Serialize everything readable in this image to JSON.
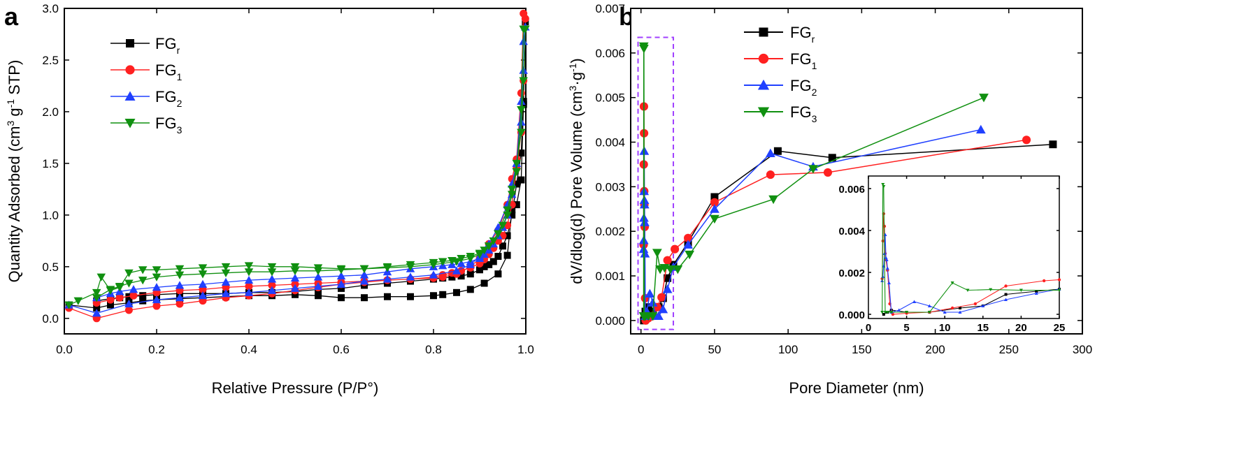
{
  "figure": {
    "panel_a_label": "a",
    "panel_b_label": "b"
  },
  "colors": {
    "FGr": "#000000",
    "FG1": "#ff2020",
    "FG2": "#2040ff",
    "FG3": "#109010",
    "box": "#a040ff"
  },
  "chart_data": [
    {
      "id": "a",
      "type": "line",
      "title": "",
      "xlabel": "Relative Pressure  (P/P°)",
      "ylabel_parts": [
        "Quantity Adsorbed (cm",
        "3",
        " g",
        "-1",
        " STP)"
      ],
      "xlim": [
        0,
        1.0
      ],
      "ylim": [
        -0.15,
        3.0
      ],
      "xticks": [
        "0.0",
        "0.2",
        "0.4",
        "0.6",
        "0.8",
        "1.0"
      ],
      "yticks": [
        "0.0",
        "0.5",
        "1.0",
        "1.5",
        "2.0",
        "2.5",
        "3.0"
      ],
      "legend_position": "upper-left",
      "series": [
        {
          "name": "FGr",
          "legend_base": "FG",
          "legend_sub": "r",
          "color": "#000000",
          "marker": "square",
          "x": [
            0.01,
            0.07,
            0.1,
            0.14,
            0.17,
            0.2,
            0.25,
            0.3,
            0.35,
            0.4,
            0.45,
            0.5,
            0.55,
            0.6,
            0.65,
            0.7,
            0.75,
            0.8,
            0.82,
            0.85,
            0.88,
            0.91,
            0.94,
            0.96,
            0.97,
            0.98,
            0.99,
            0.995,
            0.999,
            0.995,
            0.99,
            0.98,
            0.97,
            0.96,
            0.95,
            0.94,
            0.93,
            0.92,
            0.91,
            0.9,
            0.88,
            0.86,
            0.84,
            0.82,
            0.8,
            0.75,
            0.7,
            0.65,
            0.6,
            0.55,
            0.5,
            0.45,
            0.4,
            0.35,
            0.3,
            0.25,
            0.2,
            0.17,
            0.14,
            0.12,
            0.1,
            0.07
          ],
          "y": [
            0.13,
            0.1,
            0.13,
            0.15,
            0.17,
            0.18,
            0.19,
            0.2,
            0.21,
            0.22,
            0.22,
            0.23,
            0.22,
            0.2,
            0.2,
            0.21,
            0.21,
            0.22,
            0.23,
            0.25,
            0.28,
            0.34,
            0.43,
            0.61,
            1.05,
            1.1,
            1.34,
            2.07,
            2.87,
            2.1,
            1.6,
            1.3,
            1.0,
            0.8,
            0.7,
            0.6,
            0.55,
            0.52,
            0.5,
            0.47,
            0.43,
            0.41,
            0.4,
            0.39,
            0.38,
            0.36,
            0.34,
            0.32,
            0.29,
            0.28,
            0.26,
            0.25,
            0.25,
            0.24,
            0.24,
            0.24,
            0.23,
            0.22,
            0.21,
            0.2,
            0.19,
            0.17
          ]
        },
        {
          "name": "FG1",
          "legend_base": "FG",
          "legend_sub": "1",
          "color": "#ff2020",
          "marker": "circle",
          "x": [
            0.01,
            0.07,
            0.14,
            0.2,
            0.25,
            0.3,
            0.35,
            0.4,
            0.45,
            0.5,
            0.55,
            0.6,
            0.65,
            0.7,
            0.75,
            0.8,
            0.82,
            0.85,
            0.88,
            0.9,
            0.92,
            0.94,
            0.96,
            0.97,
            0.98,
            0.99,
            0.995,
            0.999,
            0.995,
            0.99,
            0.98,
            0.97,
            0.96,
            0.95,
            0.94,
            0.93,
            0.92,
            0.91,
            0.9,
            0.88,
            0.86,
            0.84,
            0.82,
            0.8,
            0.75,
            0.7,
            0.65,
            0.6,
            0.55,
            0.5,
            0.45,
            0.4,
            0.35,
            0.3,
            0.25,
            0.2,
            0.15,
            0.12,
            0.1,
            0.07
          ],
          "y": [
            0.1,
            0.0,
            0.08,
            0.12,
            0.14,
            0.17,
            0.2,
            0.22,
            0.24,
            0.27,
            0.3,
            0.33,
            0.35,
            0.37,
            0.38,
            0.39,
            0.4,
            0.43,
            0.5,
            0.58,
            0.72,
            0.85,
            1.1,
            1.35,
            1.54,
            2.18,
            2.95,
            2.9,
            2.3,
            1.8,
            1.45,
            1.1,
            0.9,
            0.8,
            0.75,
            0.68,
            0.62,
            0.57,
            0.53,
            0.49,
            0.46,
            0.44,
            0.42,
            0.4,
            0.38,
            0.37,
            0.36,
            0.35,
            0.34,
            0.33,
            0.32,
            0.31,
            0.3,
            0.28,
            0.27,
            0.25,
            0.22,
            0.2,
            0.18,
            0.15
          ]
        },
        {
          "name": "FG2",
          "legend_base": "FG",
          "legend_sub": "2",
          "color": "#2040ff",
          "marker": "triangle-up",
          "x": [
            0.01,
            0.07,
            0.14,
            0.2,
            0.25,
            0.3,
            0.35,
            0.4,
            0.45,
            0.5,
            0.55,
            0.6,
            0.65,
            0.7,
            0.75,
            0.8,
            0.85,
            0.88,
            0.9,
            0.92,
            0.94,
            0.96,
            0.97,
            0.98,
            0.99,
            0.995,
            0.999,
            0.995,
            0.99,
            0.98,
            0.97,
            0.96,
            0.95,
            0.94,
            0.93,
            0.92,
            0.91,
            0.9,
            0.88,
            0.86,
            0.84,
            0.82,
            0.8,
            0.75,
            0.7,
            0.65,
            0.6,
            0.55,
            0.5,
            0.45,
            0.4,
            0.35,
            0.3,
            0.25,
            0.2,
            0.15,
            0.12,
            0.1,
            0.07
          ],
          "y": [
            0.13,
            0.05,
            0.14,
            0.18,
            0.2,
            0.22,
            0.24,
            0.25,
            0.27,
            0.29,
            0.31,
            0.33,
            0.36,
            0.38,
            0.4,
            0.42,
            0.46,
            0.52,
            0.6,
            0.72,
            0.88,
            1.1,
            1.3,
            1.5,
            2.1,
            2.68,
            2.82,
            2.4,
            1.9,
            1.5,
            1.2,
            1.0,
            0.88,
            0.8,
            0.72,
            0.66,
            0.62,
            0.58,
            0.55,
            0.53,
            0.52,
            0.51,
            0.5,
            0.48,
            0.45,
            0.42,
            0.41,
            0.4,
            0.39,
            0.38,
            0.37,
            0.35,
            0.33,
            0.32,
            0.3,
            0.28,
            0.26,
            0.24,
            0.2
          ]
        },
        {
          "name": "FG3",
          "legend_base": "FG",
          "legend_sub": "3",
          "color": "#109010",
          "marker": "triangle-down",
          "x": [
            0.01,
            0.03,
            0.07,
            0.08,
            0.1,
            0.12,
            0.14,
            0.17,
            0.2,
            0.25,
            0.3,
            0.35,
            0.4,
            0.45,
            0.5,
            0.55,
            0.6,
            0.65,
            0.7,
            0.75,
            0.8,
            0.85,
            0.88,
            0.9,
            0.92,
            0.94,
            0.96,
            0.97,
            0.98,
            0.99,
            0.995,
            0.999,
            0.995,
            0.99,
            0.98,
            0.97,
            0.96,
            0.95,
            0.94,
            0.93,
            0.92,
            0.91,
            0.9,
            0.88,
            0.86,
            0.84,
            0.82,
            0.8,
            0.75,
            0.7,
            0.65,
            0.6,
            0.55,
            0.5,
            0.45,
            0.4,
            0.35,
            0.3,
            0.25,
            0.2,
            0.17,
            0.14,
            0.12,
            0.1,
            0.07
          ],
          "y": [
            0.13,
            0.17,
            0.25,
            0.4,
            0.27,
            0.3,
            0.44,
            0.47,
            0.47,
            0.48,
            0.49,
            0.5,
            0.51,
            0.5,
            0.5,
            0.49,
            0.48,
            0.48,
            0.49,
            0.5,
            0.52,
            0.55,
            0.58,
            0.62,
            0.7,
            0.82,
            1.05,
            1.25,
            1.42,
            2.02,
            2.8,
            2.8,
            2.3,
            1.8,
            1.5,
            1.2,
            1.0,
            0.9,
            0.82,
            0.75,
            0.7,
            0.66,
            0.63,
            0.6,
            0.58,
            0.56,
            0.55,
            0.54,
            0.52,
            0.5,
            0.48,
            0.47,
            0.46,
            0.46,
            0.45,
            0.45,
            0.44,
            0.43,
            0.42,
            0.4,
            0.37,
            0.34,
            0.31,
            0.28,
            0.2
          ]
        }
      ]
    },
    {
      "id": "b",
      "type": "line",
      "title": "",
      "xlabel": "Pore Diameter (nm)",
      "ylabel_parts": [
        "dV/dlog(d) Pore Volume (cm",
        "3",
        "·g",
        "-1",
        ")"
      ],
      "xlim": [
        -7,
        300
      ],
      "ylim": [
        -0.0003,
        0.007
      ],
      "xticks": [
        "0",
        "50",
        "100",
        "150",
        "200",
        "250",
        "300"
      ],
      "yticks": [
        "0.000",
        "0.001",
        "0.002",
        "0.003",
        "0.004",
        "0.005",
        "0.006",
        "0.007"
      ],
      "legend_position": "upper-center",
      "highlight_box": {
        "x": [
          -2,
          22
        ],
        "y": [
          -0.0002,
          0.00635
        ]
      },
      "series": [
        {
          "name": "FGr",
          "legend_base": "FG",
          "legend_sub": "r",
          "color": "#000000",
          "marker": "square",
          "x": [
            2,
            2.5,
            3,
            5,
            8,
            12,
            15,
            18,
            22,
            32,
            50,
            93,
            130,
            280
          ],
          "y": [
            0.0,
            0.0001,
            0.0002,
            0.0003,
            0.0002,
            0.0003,
            0.0005,
            0.00095,
            0.00125,
            0.00175,
            0.00277,
            0.0038,
            0.00365,
            0.00395
          ]
        },
        {
          "name": "FG1",
          "legend_base": "FG",
          "legend_sub": "1",
          "color": "#ff2020",
          "marker": "circle",
          "x": [
            1.8,
            1.9,
            2.0,
            2.1,
            2.2,
            2.3,
            2.5,
            2.8,
            3.2,
            5,
            8,
            11,
            14,
            18,
            23,
            32,
            50,
            88,
            127,
            262
          ],
          "y": [
            0.0017,
            0.0035,
            0.0048,
            0.0042,
            0.0029,
            0.0026,
            0.0021,
            0.0005,
            0.0,
            5e-05,
            0.0001,
            0.0003,
            0.00052,
            0.00135,
            0.0016,
            0.00185,
            0.00265,
            0.00327,
            0.00332,
            0.00405
          ]
        },
        {
          "name": "FG2",
          "legend_base": "FG",
          "legend_sub": "2",
          "color": "#2040ff",
          "marker": "triangle-up",
          "x": [
            1.8,
            1.9,
            2.0,
            2.1,
            2.2,
            2.3,
            2.4,
            2.5,
            2.7,
            3,
            4,
            6,
            8,
            10,
            12,
            15,
            18,
            22,
            32,
            50,
            88,
            117,
            231
          ],
          "y": [
            0.0016,
            0.0018,
            0.0023,
            0.0029,
            0.0038,
            0.0027,
            0.0026,
            0.0022,
            0.0015,
            0.0001,
            0.0002,
            0.0006,
            0.0004,
            0.0001,
            0.0001,
            0.00025,
            0.0007,
            0.0012,
            0.0017,
            0.0025,
            0.00375,
            0.00345,
            0.00428
          ]
        },
        {
          "name": "FG3",
          "legend_base": "FG",
          "legend_sub": "3",
          "color": "#109010",
          "marker": "triangle-down",
          "x": [
            1.8,
            1.9,
            2.0,
            2.2,
            2.5,
            3,
            5,
            8,
            11,
            13,
            16,
            20,
            25,
            33,
            50,
            90,
            117,
            233
          ],
          "y": [
            0.0001,
            0.00615,
            0.0061,
            0.0001,
            0.0001,
            0.0001,
            0.0001,
            0.0001,
            0.00152,
            0.00115,
            0.00118,
            0.00115,
            0.00115,
            0.00148,
            0.00228,
            0.00272,
            0.0034,
            0.005
          ]
        }
      ]
    },
    {
      "id": "b-inset",
      "type": "line",
      "title": "",
      "xlabel": "",
      "ylabel": "",
      "xlim": [
        0,
        25
      ],
      "ylim": [
        -0.0002,
        0.0066
      ],
      "xticks": [
        "0",
        "5",
        "10",
        "15",
        "20",
        "25"
      ],
      "yticks": [
        "0.000",
        "0.002",
        "0.004",
        "0.006"
      ],
      "series": [
        {
          "name": "FGr",
          "color": "#000000",
          "marker": "square",
          "x": [
            2,
            2.5,
            3,
            5,
            8,
            12,
            15,
            18,
            22,
            25
          ],
          "y": [
            0.0,
            0.0001,
            0.0002,
            0.0001,
            0.0001,
            0.0003,
            0.0004,
            0.00095,
            0.0011,
            0.0012
          ]
        },
        {
          "name": "FG1",
          "color": "#ff2020",
          "marker": "circle",
          "x": [
            1.8,
            1.9,
            2.0,
            2.1,
            2.2,
            2.3,
            2.5,
            2.8,
            3.2,
            5,
            8,
            11,
            14,
            18,
            23,
            25
          ],
          "y": [
            0.0017,
            0.0035,
            0.0048,
            0.0042,
            0.0029,
            0.0026,
            0.0021,
            0.0005,
            0.0,
            5e-05,
            0.0001,
            0.0003,
            0.0005,
            0.00135,
            0.0016,
            0.00165
          ]
        },
        {
          "name": "FG2",
          "color": "#2040ff",
          "marker": "triangle-up",
          "x": [
            1.8,
            1.9,
            2.0,
            2.1,
            2.2,
            2.3,
            2.4,
            2.5,
            2.7,
            3,
            4,
            6,
            8,
            10,
            12,
            15,
            18,
            22,
            25
          ],
          "y": [
            0.0016,
            0.0018,
            0.0023,
            0.0029,
            0.0038,
            0.0027,
            0.0026,
            0.0022,
            0.0015,
            0.0001,
            0.0002,
            0.0006,
            0.0004,
            0.0001,
            0.0001,
            0.0004,
            0.0007,
            0.001,
            0.0012
          ]
        },
        {
          "name": "FG3",
          "color": "#109010",
          "marker": "triangle-down",
          "x": [
            1.8,
            1.9,
            2.0,
            2.2,
            2.5,
            3,
            5,
            8,
            11,
            13,
            16,
            20,
            25
          ],
          "y": [
            0.0001,
            0.0062,
            0.0061,
            0.0001,
            0.0001,
            0.0001,
            0.0001,
            0.0001,
            0.0015,
            0.00115,
            0.00118,
            0.00115,
            0.00115
          ]
        }
      ]
    }
  ]
}
